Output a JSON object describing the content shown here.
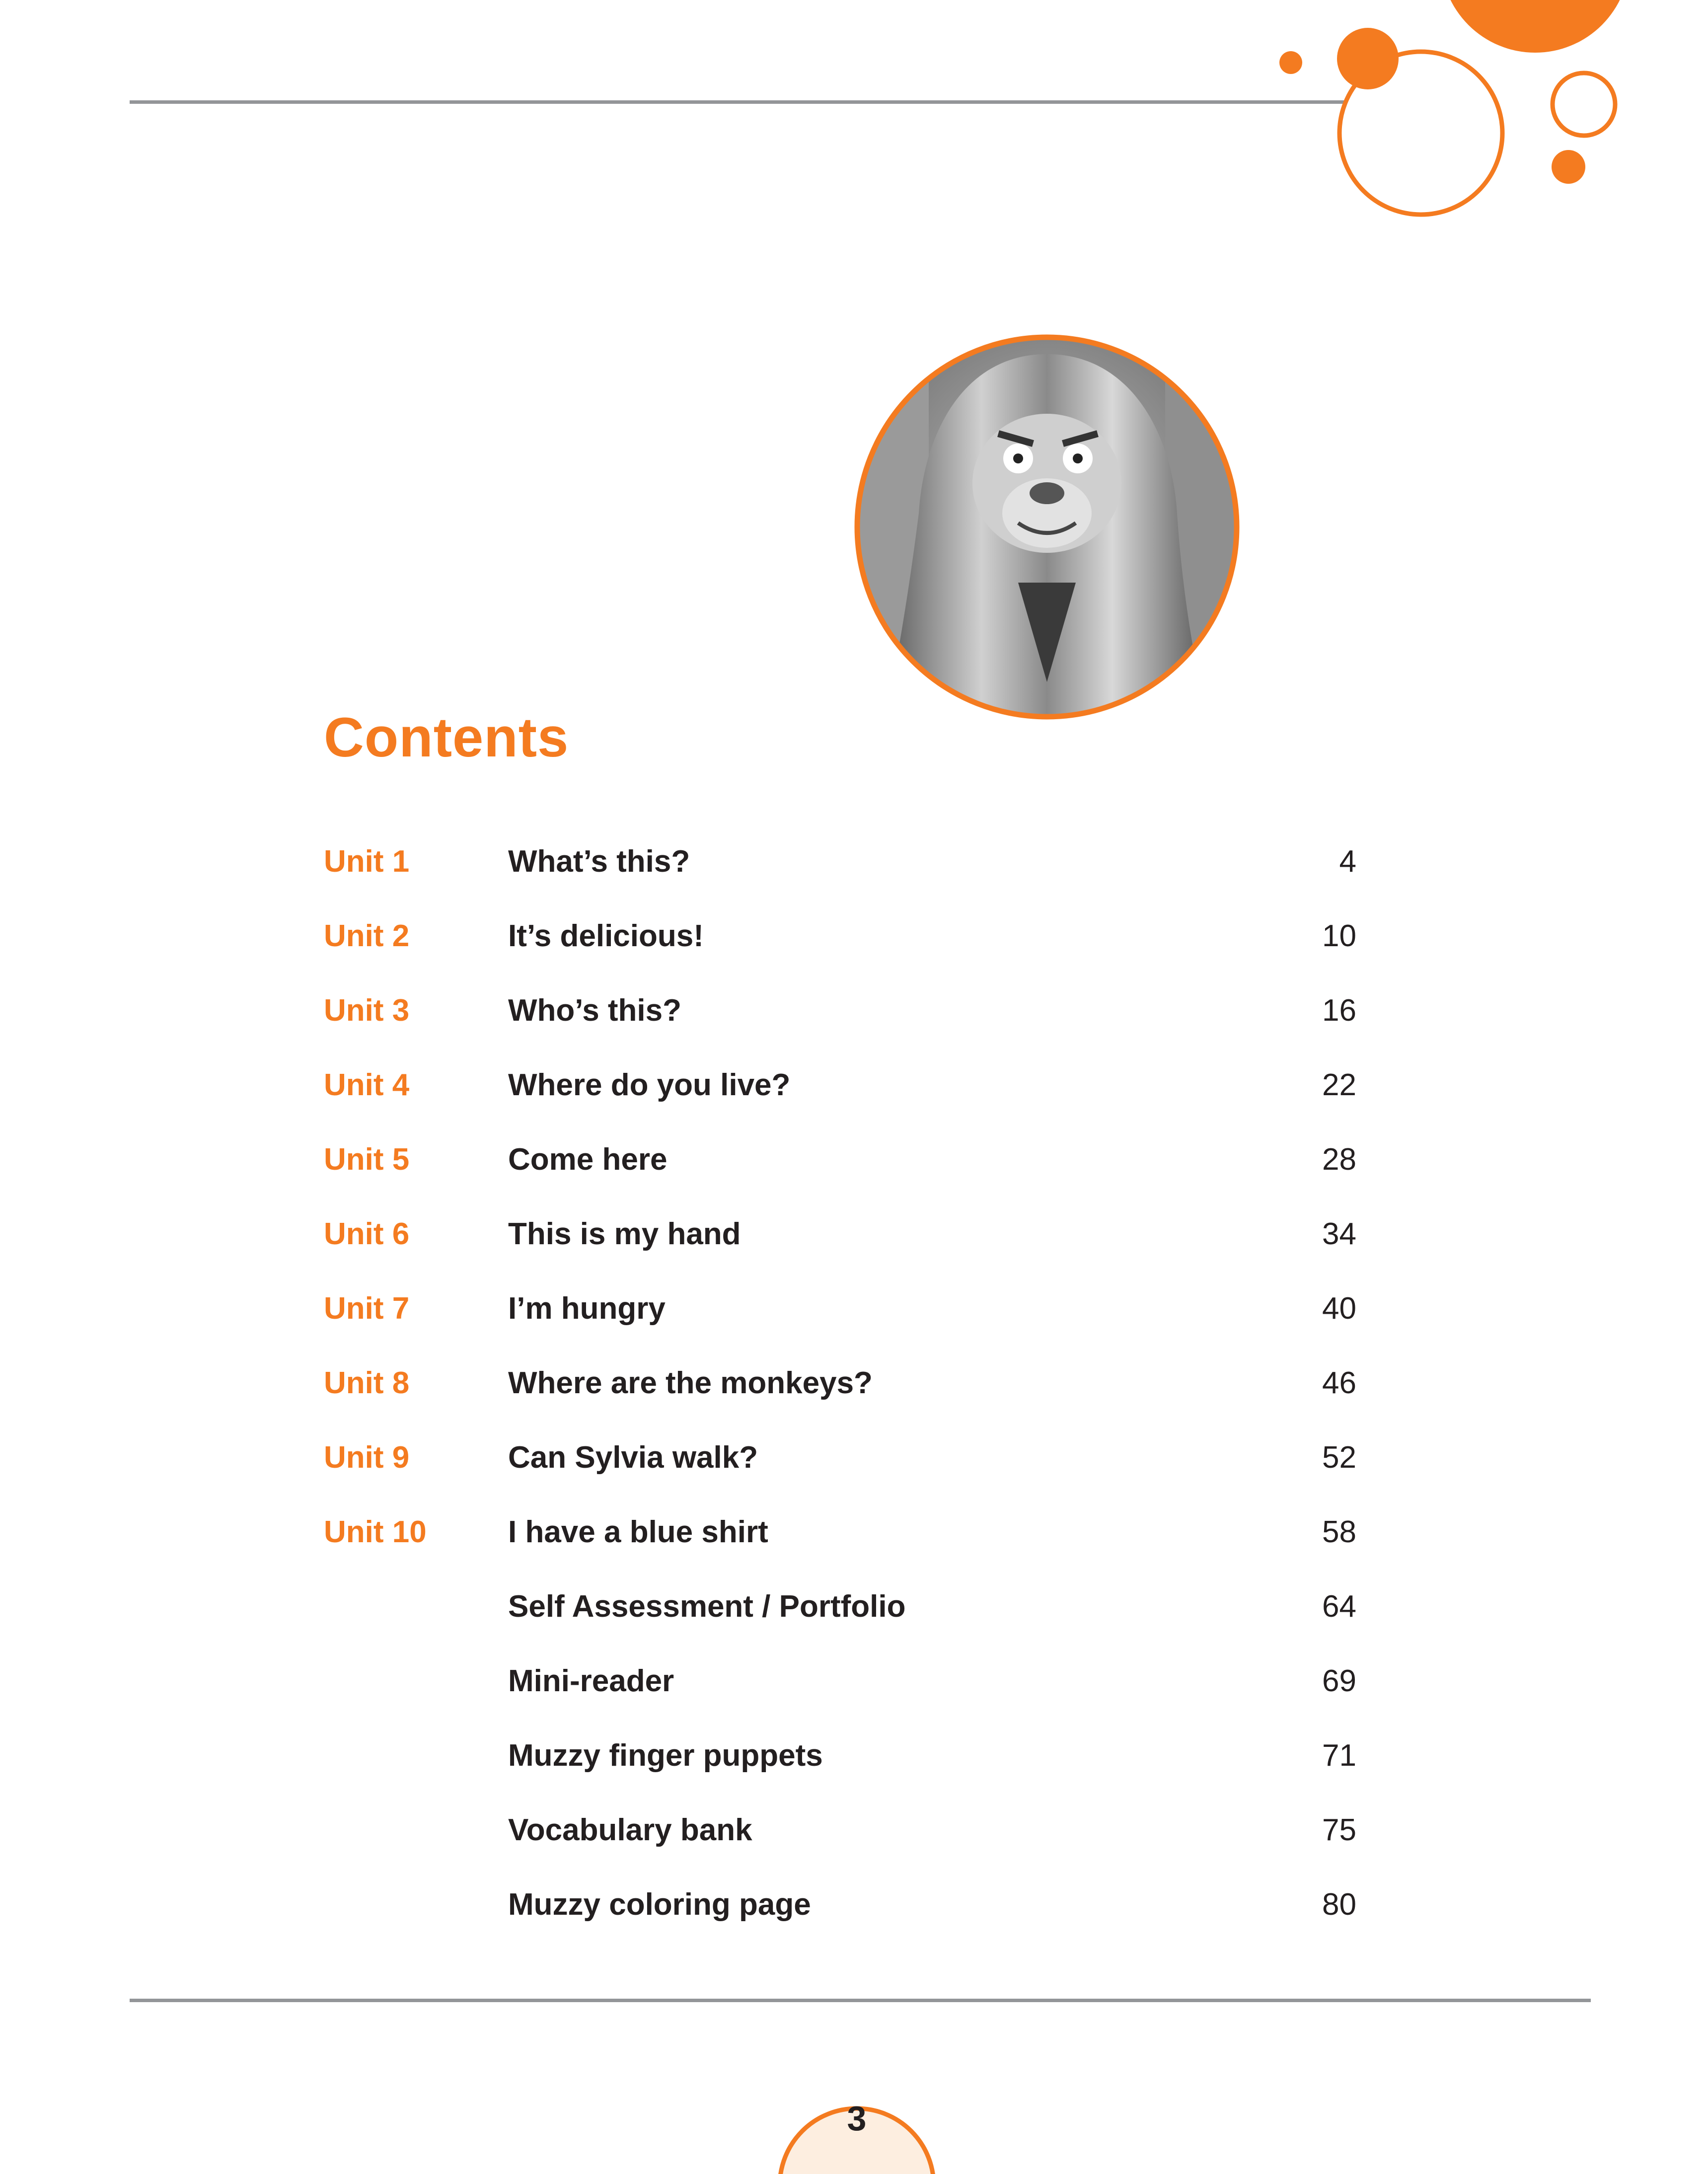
{
  "heading": "Contents",
  "accent_color": "#f47b20",
  "rule_color": "#939598",
  "page_number": "3",
  "illustration": "lion-character-portrait",
  "entries": [
    {
      "unit": "Unit 1",
      "title": "What’s this?",
      "page": "4"
    },
    {
      "unit": "Unit 2",
      "title": "It’s delicious!",
      "page": "10"
    },
    {
      "unit": "Unit 3",
      "title": "Who’s this?",
      "page": "16"
    },
    {
      "unit": "Unit 4",
      "title": "Where do you live?",
      "page": "22"
    },
    {
      "unit": "Unit 5",
      "title": "Come here",
      "page": "28"
    },
    {
      "unit": "Unit 6",
      "title": "This is my hand",
      "page": "34"
    },
    {
      "unit": "Unit 7",
      "title": "I’m hungry",
      "page": "40"
    },
    {
      "unit": "Unit 8",
      "title": "Where are the monkeys?",
      "page": "46"
    },
    {
      "unit": "Unit 9",
      "title": "Can Sylvia walk?",
      "page": "52"
    },
    {
      "unit": "Unit 10",
      "title": "I have a blue shirt",
      "page": "58"
    },
    {
      "unit": "",
      "title": "Self Assessment / Portfolio",
      "page": "64"
    },
    {
      "unit": "",
      "title": "Mini-reader",
      "page": "69"
    },
    {
      "unit": "",
      "title": "Muzzy finger puppets",
      "page": "71"
    },
    {
      "unit": "",
      "title": "Vocabulary bank",
      "page": "75"
    },
    {
      "unit": "",
      "title": "Muzzy coloring page",
      "page": "80"
    }
  ]
}
